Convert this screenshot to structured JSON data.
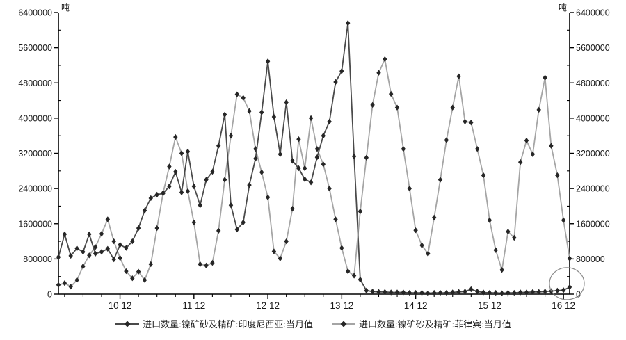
{
  "chart_data": {
    "type": "line",
    "title": "",
    "unit_label": "吨",
    "grid": "off",
    "legend_position": "bottom-center",
    "y_axis": {
      "min": 0,
      "max": 6400000,
      "major_tick_step": 800000,
      "minor_tick_step": 400000,
      "tick_labels": [
        "0",
        "800000",
        "1600000",
        "2400000",
        "3200000",
        "4000000",
        "4800000",
        "5600000",
        "6400000"
      ],
      "mirrored_right_axis": true
    },
    "x_axis": {
      "visible_tick_labels": [
        "10 12",
        "11 12",
        "12 12",
        "13 12",
        "14 12",
        "15 12",
        "16 12"
      ],
      "tick_label_meaning": "December of 2010..2016",
      "minor_tick_every_months": 3
    },
    "x_months": [
      "2010-02",
      "2010-03",
      "2010-04",
      "2010-05",
      "2010-06",
      "2010-07",
      "2010-08",
      "2010-09",
      "2010-10",
      "2010-11",
      "2010-12",
      "2011-01",
      "2011-02",
      "2011-03",
      "2011-04",
      "2011-05",
      "2011-06",
      "2011-07",
      "2011-08",
      "2011-09",
      "2011-10",
      "2011-11",
      "2011-12",
      "2012-01",
      "2012-02",
      "2012-03",
      "2012-04",
      "2012-05",
      "2012-06",
      "2012-07",
      "2012-08",
      "2012-09",
      "2012-10",
      "2012-11",
      "2012-12",
      "2013-01",
      "2013-02",
      "2013-03",
      "2013-04",
      "2013-05",
      "2013-06",
      "2013-07",
      "2013-08",
      "2013-09",
      "2013-10",
      "2013-11",
      "2013-12",
      "2014-01",
      "2014-02",
      "2014-03",
      "2014-04",
      "2014-05",
      "2014-06",
      "2014-07",
      "2014-08",
      "2014-09",
      "2014-10",
      "2014-11",
      "2014-12",
      "2015-01",
      "2015-02",
      "2015-03",
      "2015-04",
      "2015-05",
      "2015-06",
      "2015-07",
      "2015-08",
      "2015-09",
      "2015-10",
      "2015-11",
      "2015-12",
      "2016-01",
      "2016-02",
      "2016-03",
      "2016-04",
      "2016-05",
      "2016-06",
      "2016-07",
      "2016-08",
      "2016-09",
      "2016-10",
      "2016-11",
      "2016-12",
      "2017-01"
    ],
    "series": [
      {
        "name": "进口数量:镍矿砂及精矿:印度尼西亚:当月值",
        "line_color": "#4a4a4a",
        "marker": "diamond",
        "marker_color": "#262626",
        "values": [
          840000,
          1360000,
          870000,
          1040000,
          960000,
          1360000,
          920000,
          960000,
          1030000,
          790000,
          1120000,
          1050000,
          1200000,
          1500000,
          1900000,
          2180000,
          2260000,
          2290000,
          2450000,
          2780000,
          2310000,
          3240000,
          2450000,
          2020000,
          2600000,
          2780000,
          3370000,
          4080000,
          2020000,
          1470000,
          1630000,
          2480000,
          3080000,
          4130000,
          5290000,
          4030000,
          3180000,
          4360000,
          3030000,
          2860000,
          2610000,
          2540000,
          3110000,
          3600000,
          3920000,
          4820000,
          5070000,
          6160000,
          3130000,
          330000,
          80000,
          60000,
          50000,
          50000,
          40000,
          40000,
          40000,
          30000,
          30000,
          30000,
          20000,
          30000,
          30000,
          30000,
          40000,
          50000,
          60000,
          110000,
          60000,
          40000,
          30000,
          30000,
          20000,
          30000,
          30000,
          40000,
          40000,
          50000,
          50000,
          60000,
          70000,
          80000,
          90000,
          160000
        ]
      },
      {
        "name": "进口数量:镍矿砂及精矿:菲律宾:当月值",
        "line_color": "#a5a5a5",
        "marker": "diamond",
        "marker_color": "#262626",
        "values": [
          210000,
          250000,
          170000,
          320000,
          630000,
          880000,
          1070000,
          1370000,
          1700000,
          1200000,
          820000,
          520000,
          360000,
          510000,
          320000,
          680000,
          1500000,
          2300000,
          2900000,
          3570000,
          3200000,
          2340000,
          1630000,
          680000,
          650000,
          710000,
          1440000,
          2600000,
          3600000,
          4540000,
          4460000,
          4160000,
          3300000,
          2770000,
          2200000,
          970000,
          810000,
          1200000,
          1940000,
          3520000,
          2860000,
          4000000,
          3300000,
          2950000,
          2400000,
          1700000,
          1050000,
          520000,
          420000,
          1880000,
          3100000,
          4300000,
          5030000,
          5340000,
          4550000,
          4240000,
          3300000,
          2400000,
          1450000,
          1110000,
          920000,
          1740000,
          2600000,
          3500000,
          4240000,
          4950000,
          3920000,
          3900000,
          3300000,
          2700000,
          1680000,
          1000000,
          550000,
          1420000,
          1280000,
          3000000,
          3490000,
          3180000,
          4190000,
          4920000,
          3370000,
          2700000,
          1680000,
          810000
        ]
      }
    ],
    "annotation": {
      "shape": "ellipse",
      "target": "last point of Indonesia series near zero at right axis"
    }
  },
  "legend": {
    "items": [
      {
        "label": "进口数量:镍矿砂及精矿:印度尼西亚:当月值"
      },
      {
        "label": "进口数量:镍矿砂及精矿:菲律宾:当月值"
      }
    ]
  },
  "colors": {
    "axis": "#000000",
    "text": "#1a1a1a",
    "annotation_circle": "#8a8a8a",
    "background": "#ffffff"
  }
}
